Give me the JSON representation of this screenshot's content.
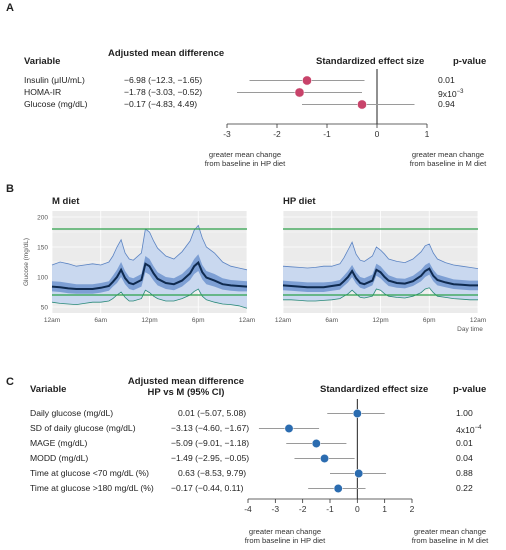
{
  "colors": {
    "panel_a_point": "#c8436a",
    "panel_c_point": "#2b6cb0",
    "ci_line": "#9a9a9a",
    "zero_line": "#222222",
    "band_outer": "#c9d8ef",
    "band_outer_edge": "#5b83c2",
    "band_inner": "#7d9fd4",
    "median_line": "#0f2a4f",
    "threshold_line": "#2ca14a",
    "min_line": "#2a8a7a",
    "plot_bg": "#ebebeb",
    "grid": "#ffffff"
  },
  "panel_a": {
    "letter": "A",
    "hdr_variable": "Variable",
    "hdr_amd": "Adjusted mean difference",
    "hdr_ses": "Standardized effect size",
    "hdr_p": "p-value",
    "rows": [
      {
        "label": "Insulin (μIU/mL)",
        "amd": "−6.98 (−12.3, −1.65)",
        "p": "0.01"
      },
      {
        "label": "HOMA-IR",
        "amd": "−1.78 (−3.03, −0.52)",
        "p": "9x10",
        "p_exp": "−3"
      },
      {
        "label": "Glucose (mg/dL)",
        "amd": "−0.17 (−4.83, 4.49)",
        "p": "0.94"
      }
    ],
    "note_left": [
      "greater mean change",
      "from baseline in HP diet"
    ],
    "note_right": [
      "greater mean change",
      "from baseline in M diet"
    ]
  },
  "panel_b": {
    "letter": "B",
    "left_title": "M diet",
    "right_title": "HP diet",
    "ylabel": "Glucose (mg/dL)",
    "xlabel": "Day time",
    "y_ticks": [
      "200",
      "150",
      "100",
      "50"
    ],
    "x_ticks": [
      "12am",
      "6am",
      "12pm",
      "6pm",
      "12am"
    ]
  },
  "panel_c": {
    "letter": "C",
    "hdr_variable": "Variable",
    "hdr_amd_1": "Adjusted mean difference",
    "hdr_amd_2": "HP vs M (95% CI)",
    "hdr_ses": "Standardized effect size",
    "hdr_p": "p-value",
    "rows": [
      {
        "label": "Daily glucose (mg/dL)",
        "amd": "0.01 (−5.07, 5.08)",
        "p": "1.00"
      },
      {
        "label": "SD of daily glucose (mg/dL)",
        "amd": "−3.13 (−4.60, −1.67)",
        "p": "4x10",
        "p_exp": "−4"
      },
      {
        "label": "MAGE (mg/dL)",
        "amd": "−5.09 (−9.01, −1.18)",
        "p": "0.01"
      },
      {
        "label": "MODD (mg/dL)",
        "amd": "−1.49 (−2.95, −0.05)",
        "p": "0.04"
      },
      {
        "label": "Time at glucose <70 mg/dL (%)",
        "amd": "0.63 (−8.53, 9.79)",
        "p": "0.88"
      },
      {
        "label": "Time at glucose >180 mg/dL (%)",
        "amd": "−0.17 (−0.44, 0.11)",
        "p": "0.22"
      }
    ],
    "note_left": [
      "greater mean change",
      "from baseline in HP diet"
    ],
    "note_right": [
      "greater mean change",
      "from baseline in M diet"
    ]
  },
  "chart_data": [
    {
      "type": "scatter",
      "subtype": "forest",
      "panel": "A",
      "xlim": [
        -3,
        1
      ],
      "x_ticks": [
        -3,
        -2,
        -1,
        0,
        1
      ],
      "reference_line": 0,
      "categories": [
        "Insulin (μIU/mL)",
        "HOMA-IR",
        "Glucose (mg/dL)"
      ],
      "estimate": [
        -1.4,
        -1.55,
        -0.3
      ],
      "ci_low": [
        -2.55,
        -2.8,
        -1.5
      ],
      "ci_high": [
        -0.25,
        -0.3,
        0.75
      ]
    },
    {
      "type": "area",
      "panel": "B-left",
      "title": "M diet",
      "ylabel": "Glucose (mg/dL)",
      "ylim": [
        40,
        210
      ],
      "x_ticks": [
        "12am",
        "6am",
        "12pm",
        "6pm",
        "12am"
      ],
      "reference_lines": [
        70,
        180
      ],
      "x_hours": [
        0,
        1,
        2,
        3,
        4,
        5,
        6,
        7,
        7.5,
        8,
        8.5,
        9,
        9.5,
        10,
        11,
        11.5,
        12,
        12.5,
        13,
        14,
        15,
        16,
        17,
        17.5,
        18,
        18.5,
        19,
        20,
        21,
        22,
        23,
        24
      ],
      "series": [
        {
          "name": "max",
          "values": [
            120,
            125,
            122,
            118,
            120,
            122,
            120,
            125,
            135,
            150,
            162,
            140,
            130,
            128,
            140,
            180,
            175,
            160,
            148,
            135,
            130,
            142,
            160,
            178,
            186,
            165,
            150,
            140,
            125,
            118,
            115,
            112
          ]
        },
        {
          "name": "upper quartile",
          "values": [
            93,
            92,
            90,
            88,
            88,
            88,
            90,
            93,
            102,
            112,
            125,
            110,
            100,
            98,
            105,
            135,
            130,
            118,
            108,
            100,
            98,
            105,
            118,
            130,
            138,
            120,
            110,
            105,
            98,
            95,
            94,
            93
          ]
        },
        {
          "name": "median",
          "values": [
            84,
            83,
            81,
            80,
            80,
            80,
            82,
            85,
            92,
            100,
            112,
            98,
            90,
            88,
            95,
            122,
            118,
            106,
            97,
            90,
            88,
            94,
            106,
            118,
            124,
            108,
            99,
            94,
            88,
            86,
            85,
            84
          ]
        },
        {
          "name": "lower quartile",
          "values": [
            76,
            75,
            73,
            72,
            72,
            72,
            74,
            77,
            84,
            90,
            100,
            88,
            80,
            78,
            84,
            108,
            104,
            94,
            86,
            80,
            78,
            84,
            95,
            105,
            110,
            96,
            88,
            84,
            79,
            77,
            76,
            76
          ]
        },
        {
          "name": "min",
          "values": [
            58,
            56,
            55,
            54,
            56,
            58,
            58,
            60,
            64,
            70,
            75,
            66,
            60,
            60,
            64,
            78,
            74,
            68,
            64,
            60,
            60,
            64,
            70,
            76,
            80,
            68,
            62,
            58,
            55,
            54,
            52,
            48
          ]
        }
      ]
    },
    {
      "type": "area",
      "panel": "B-right",
      "title": "HP diet",
      "xlabel": "Day time",
      "ylim": [
        40,
        210
      ],
      "x_ticks": [
        "12am",
        "6am",
        "12pm",
        "6pm",
        "12am"
      ],
      "reference_lines": [
        70,
        180
      ],
      "x_hours": [
        0,
        1,
        2,
        3,
        4,
        5,
        6,
        7,
        7.5,
        8,
        8.5,
        9,
        9.5,
        10,
        11,
        11.5,
        12,
        12.5,
        13,
        14,
        15,
        16,
        17,
        17.5,
        18,
        18.5,
        19,
        20,
        21,
        22,
        23,
        24
      ],
      "series": [
        {
          "name": "max",
          "values": [
            118,
            117,
            116,
            115,
            116,
            118,
            118,
            122,
            132,
            145,
            158,
            138,
            128,
            126,
            135,
            150,
            145,
            138,
            130,
            126,
            124,
            130,
            142,
            152,
            155,
            140,
            130,
            124,
            120,
            118,
            116,
            114
          ]
        },
        {
          "name": "upper quartile",
          "values": [
            94,
            93,
            92,
            91,
            91,
            91,
            92,
            95,
            102,
            110,
            120,
            108,
            100,
            98,
            104,
            122,
            118,
            110,
            103,
            98,
            97,
            102,
            112,
            120,
            124,
            112,
            104,
            100,
            96,
            95,
            94,
            94
          ]
        },
        {
          "name": "median",
          "values": [
            86,
            85,
            84,
            83,
            83,
            83,
            85,
            87,
            93,
            100,
            110,
            98,
            90,
            88,
            94,
            112,
            108,
            100,
            94,
            90,
            89,
            93,
            102,
            110,
            114,
            102,
            95,
            91,
            88,
            87,
            86,
            86
          ]
        },
        {
          "name": "lower quartile",
          "values": [
            78,
            77,
            76,
            75,
            75,
            75,
            77,
            79,
            85,
            91,
            100,
            89,
            82,
            80,
            86,
            102,
            98,
            91,
            85,
            82,
            81,
            85,
            93,
            100,
            104,
            93,
            86,
            83,
            80,
            79,
            78,
            78
          ]
        },
        {
          "name": "min",
          "values": [
            62,
            62,
            61,
            60,
            60,
            61,
            62,
            64,
            68,
            72,
            78,
            72,
            66,
            65,
            68,
            80,
            78,
            72,
            68,
            66,
            65,
            68,
            74,
            80,
            82,
            74,
            68,
            66,
            64,
            63,
            62,
            62
          ]
        }
      ]
    },
    {
      "type": "scatter",
      "subtype": "forest",
      "panel": "C",
      "xlim": [
        -4,
        2
      ],
      "x_ticks": [
        -4,
        -3,
        -2,
        -1,
        0,
        1,
        2
      ],
      "reference_line": 0,
      "categories": [
        "Daily glucose (mg/dL)",
        "SD of daily glucose (mg/dL)",
        "MAGE (mg/dL)",
        "MODD (mg/dL)",
        "Time at glucose <70 mg/dL (%)",
        "Time at glucose >180 mg/dL (%)"
      ],
      "estimate": [
        0.0,
        -2.5,
        -1.5,
        -1.2,
        0.05,
        -0.7
      ],
      "ci_low": [
        -1.1,
        -3.6,
        -2.6,
        -2.3,
        -1.0,
        -1.8
      ],
      "ci_high": [
        1.0,
        -1.4,
        -0.4,
        -0.1,
        1.05,
        0.3
      ]
    }
  ]
}
